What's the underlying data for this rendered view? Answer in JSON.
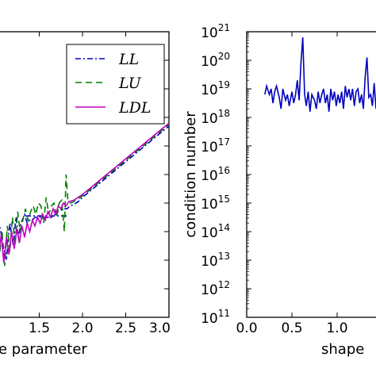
{
  "chart_data": [
    {
      "type": "line",
      "xlabel": "e parameter",
      "ylabel": "",
      "xlim": [
        1.0,
        3.0
      ],
      "ylim": [
        0,
        10
      ],
      "x_ticks": [
        "1.5",
        "2.0",
        "2.5",
        "3.0"
      ],
      "grid": false,
      "legend_position": "top-right",
      "series": [
        {
          "name": "LL",
          "color": "#0000bf",
          "style": "dash-dot",
          "points": [
            [
              1.0,
              3.4
            ],
            [
              1.05,
              3.1
            ],
            [
              1.09,
              2.4
            ],
            [
              1.12,
              2.0
            ],
            [
              1.16,
              3.3
            ],
            [
              1.2,
              2.5
            ],
            [
              1.23,
              3.5
            ],
            [
              1.26,
              2.8
            ],
            [
              1.29,
              3.3
            ],
            [
              1.33,
              3.6
            ],
            [
              1.36,
              3.3
            ],
            [
              1.39,
              3.4
            ],
            [
              1.42,
              3.4
            ],
            [
              1.45,
              3.5
            ],
            [
              1.48,
              3.5
            ],
            [
              1.52,
              3.5
            ],
            [
              1.56,
              3.5
            ],
            [
              1.59,
              3.5
            ],
            [
              1.62,
              3.5
            ],
            [
              1.64,
              3.5
            ],
            [
              1.68,
              3.6
            ],
            [
              1.72,
              3.7
            ],
            [
              1.78,
              3.8
            ],
            [
              1.82,
              3.8
            ],
            [
              1.86,
              3.9
            ],
            [
              1.9,
              3.95
            ],
            [
              1.95,
              4.05
            ],
            [
              2.0,
              4.2
            ],
            [
              2.1,
              4.45
            ],
            [
              2.2,
              4.7
            ],
            [
              2.3,
              4.95
            ],
            [
              2.4,
              5.2
            ],
            [
              2.5,
              5.45
            ],
            [
              2.6,
              5.7
            ],
            [
              2.7,
              5.95
            ],
            [
              2.8,
              6.2
            ],
            [
              2.9,
              6.45
            ],
            [
              3.0,
              6.7
            ]
          ],
          "plateaus": [
            [
              1.34,
              1.82,
              3.55
            ]
          ]
        },
        {
          "name": "LU",
          "color": "#007f00",
          "style": "dashed",
          "points": [
            [
              1.0,
              2.8
            ],
            [
              1.04,
              2.2
            ],
            [
              1.07,
              3.0
            ],
            [
              1.1,
              1.8
            ],
            [
              1.13,
              3.2
            ],
            [
              1.16,
              2.3
            ],
            [
              1.19,
              3.5
            ],
            [
              1.22,
              2.5
            ],
            [
              1.25,
              3.7
            ],
            [
              1.28,
              3.0
            ],
            [
              1.31,
              3.4
            ],
            [
              1.34,
              3.8
            ],
            [
              1.37,
              3.4
            ],
            [
              1.4,
              3.7
            ],
            [
              1.43,
              3.9
            ],
            [
              1.46,
              3.6
            ],
            [
              1.49,
              4.0
            ],
            [
              1.52,
              3.9
            ],
            [
              1.55,
              3.3
            ],
            [
              1.58,
              4.2
            ],
            [
              1.61,
              3.6
            ],
            [
              1.64,
              3.9
            ],
            [
              1.67,
              4.0
            ],
            [
              1.7,
              3.5
            ],
            [
              1.73,
              4.0
            ],
            [
              1.76,
              4.1
            ],
            [
              1.79,
              3.0
            ],
            [
              1.81,
              5.0
            ],
            [
              1.83,
              4.1
            ],
            [
              1.86,
              4.0
            ],
            [
              1.9,
              4.05
            ],
            [
              1.95,
              4.15
            ],
            [
              2.0,
              4.25
            ],
            [
              2.1,
              4.5
            ],
            [
              2.2,
              4.75
            ],
            [
              2.3,
              5.0
            ],
            [
              2.4,
              5.25
            ],
            [
              2.5,
              5.5
            ],
            [
              2.6,
              5.75
            ],
            [
              2.7,
              6.0
            ],
            [
              2.8,
              6.25
            ],
            [
              2.9,
              6.5
            ],
            [
              3.0,
              6.75
            ]
          ]
        },
        {
          "name": "LDL",
          "color": "#bf00bf",
          "style": "solid",
          "points": [
            [
              1.0,
              2.6
            ],
            [
              1.03,
              2.1
            ],
            [
              1.06,
              2.9
            ],
            [
              1.09,
              1.9
            ],
            [
              1.12,
              2.8
            ],
            [
              1.15,
              2.2
            ],
            [
              1.18,
              3.0
            ],
            [
              1.21,
              2.4
            ],
            [
              1.24,
              3.1
            ],
            [
              1.27,
              2.6
            ],
            [
              1.3,
              3.2
            ],
            [
              1.33,
              2.8
            ],
            [
              1.36,
              3.3
            ],
            [
              1.39,
              3.0
            ],
            [
              1.42,
              3.4
            ],
            [
              1.45,
              3.2
            ],
            [
              1.48,
              3.5
            ],
            [
              1.51,
              3.3
            ],
            [
              1.54,
              3.6
            ],
            [
              1.57,
              3.4
            ],
            [
              1.6,
              3.7
            ],
            [
              1.63,
              3.5
            ],
            [
              1.66,
              3.8
            ],
            [
              1.69,
              3.6
            ],
            [
              1.72,
              3.9
            ],
            [
              1.75,
              3.8
            ],
            [
              1.78,
              4.0
            ],
            [
              1.81,
              3.9
            ],
            [
              1.84,
              4.05
            ],
            [
              1.9,
              4.1
            ],
            [
              1.95,
              4.2
            ],
            [
              2.0,
              4.3
            ],
            [
              2.1,
              4.55
            ],
            [
              2.2,
              4.8
            ],
            [
              2.3,
              5.05
            ],
            [
              2.4,
              5.3
            ],
            [
              2.5,
              5.55
            ],
            [
              2.6,
              5.8
            ],
            [
              2.7,
              6.05
            ],
            [
              2.8,
              6.3
            ],
            [
              2.9,
              6.55
            ],
            [
              3.0,
              6.8
            ]
          ]
        }
      ]
    },
    {
      "type": "line",
      "xlabel": "shape",
      "ylabel": "condition number",
      "xlim": [
        0.0,
        1.45
      ],
      "x_ticks": [
        "0.0",
        "0.5",
        "1.0"
      ],
      "y_scale": "log",
      "ylim_exponent": [
        11,
        21
      ],
      "y_tick_base": "10",
      "y_tick_exponents": [
        "11",
        "12",
        "13",
        "14",
        "15",
        "16",
        "17",
        "18",
        "19",
        "20",
        "21"
      ],
      "grid": false,
      "series": [
        {
          "color": "#0000bf",
          "style": "solid",
          "points": [
            [
              0.2,
              18.8
            ],
            [
              0.22,
              19.1
            ],
            [
              0.25,
              18.8
            ],
            [
              0.27,
              19.0
            ],
            [
              0.29,
              18.5
            ],
            [
              0.31,
              18.9
            ],
            [
              0.33,
              19.1
            ],
            [
              0.36,
              18.7
            ],
            [
              0.38,
              18.3
            ],
            [
              0.4,
              19.0
            ],
            [
              0.43,
              18.6
            ],
            [
              0.45,
              18.8
            ],
            [
              0.47,
              18.4
            ],
            [
              0.5,
              18.9
            ],
            [
              0.52,
              18.5
            ],
            [
              0.54,
              18.8
            ],
            [
              0.56,
              19.3
            ],
            [
              0.58,
              18.6
            ],
            [
              0.6,
              19.9
            ],
            [
              0.62,
              20.8
            ],
            [
              0.64,
              18.8
            ],
            [
              0.66,
              18.4
            ],
            [
              0.68,
              18.9
            ],
            [
              0.7,
              18.2
            ],
            [
              0.72,
              18.8
            ],
            [
              0.75,
              18.6
            ],
            [
              0.77,
              18.3
            ],
            [
              0.79,
              18.9
            ],
            [
              0.81,
              18.5
            ],
            [
              0.83,
              18.8
            ],
            [
              0.85,
              19.0
            ],
            [
              0.87,
              18.5
            ],
            [
              0.89,
              18.8
            ],
            [
              0.91,
              18.2
            ],
            [
              0.93,
              19.0
            ],
            [
              0.95,
              18.6
            ],
            [
              0.97,
              18.9
            ],
            [
              0.99,
              18.4
            ],
            [
              1.01,
              18.8
            ],
            [
              1.03,
              18.5
            ],
            [
              1.05,
              18.9
            ],
            [
              1.07,
              18.3
            ],
            [
              1.09,
              19.1
            ],
            [
              1.11,
              18.7
            ],
            [
              1.13,
              19.0
            ],
            [
              1.15,
              18.6
            ],
            [
              1.17,
              19.0
            ],
            [
              1.19,
              18.4
            ],
            [
              1.21,
              18.9
            ],
            [
              1.23,
              19.0
            ],
            [
              1.25,
              18.5
            ],
            [
              1.27,
              18.8
            ],
            [
              1.29,
              18.3
            ],
            [
              1.31,
              19.4
            ],
            [
              1.33,
              20.1
            ],
            [
              1.35,
              18.7
            ],
            [
              1.37,
              18.8
            ],
            [
              1.39,
              18.4
            ],
            [
              1.41,
              19.2
            ],
            [
              1.43,
              18.3
            ],
            [
              1.45,
              18.6
            ]
          ]
        }
      ]
    }
  ]
}
